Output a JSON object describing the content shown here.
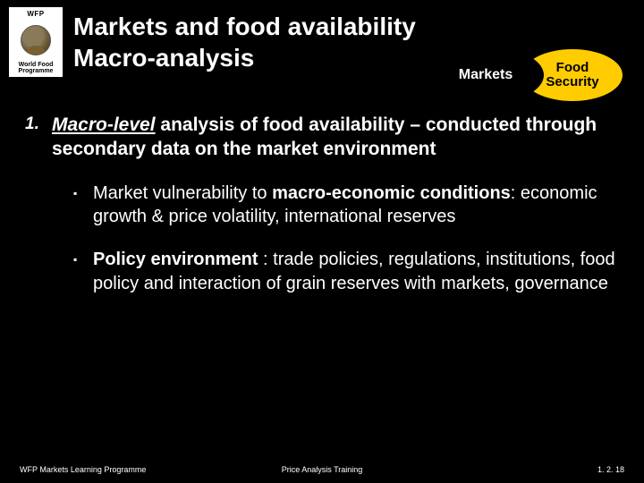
{
  "logo": {
    "top": "WFP",
    "bottom_line1": "World Food",
    "bottom_line2": "Programme"
  },
  "title": {
    "line1": "Markets and food availability",
    "line2": "Macro-analysis"
  },
  "ovals": {
    "markets": "Markets",
    "food_line1": "Food",
    "food_line2": "Security",
    "markets_bg": "#000000",
    "markets_fg": "#ffffff",
    "food_bg": "#ffcc00",
    "food_fg": "#000000"
  },
  "item1": {
    "number": "1.",
    "lead": "Macro-level",
    "rest": " analysis of food availability – conducted through secondary data on the market environment"
  },
  "bullet1": {
    "pre": "Market vulnerability to ",
    "bold": "macro-economic conditions",
    "post": ": economic growth & price volatility, international reserves"
  },
  "bullet2": {
    "bold": "Policy environment",
    "post": " : trade policies, regulations, institutions, food policy and interaction of grain reserves with markets, governance"
  },
  "footer": {
    "left": "WFP Markets Learning Programme",
    "center": "Price Analysis Training",
    "right": "1. 2. 18"
  },
  "colors": {
    "background": "#000000",
    "text": "#ffffff"
  }
}
